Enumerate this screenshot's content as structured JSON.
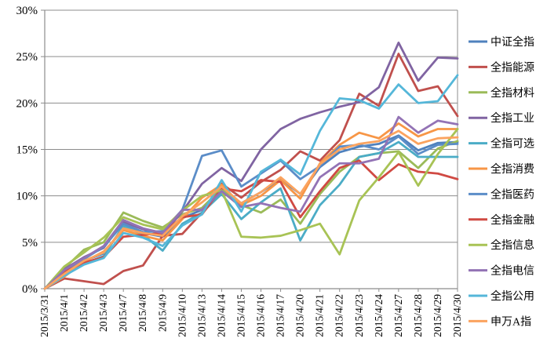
{
  "chart_data": {
    "type": "line",
    "title": "",
    "xlabel": "",
    "ylabel": "",
    "unit": "%",
    "grid": "horizontal",
    "legend_position": "right",
    "x_categories": [
      "2015/3/31",
      "2015/4/1",
      "2015/4/2",
      "2015/4/3",
      "2015/4/7",
      "2015/4/8",
      "2015/4/9",
      "2015/4/10",
      "2015/4/13",
      "2015/4/14",
      "2015/4/15",
      "2015/4/16",
      "2015/4/17",
      "2015/4/20",
      "2015/4/21",
      "2015/4/22",
      "2015/4/23",
      "2015/4/24",
      "2015/4/27",
      "2015/4/28",
      "2015/4/29",
      "2015/4/30"
    ],
    "y_axis": {
      "min": 0,
      "max": 30,
      "step": 5,
      "tick_labels": [
        "0%",
        "5%",
        "10%",
        "15%",
        "20%",
        "25%",
        "30%"
      ]
    },
    "series": [
      {
        "name": "中证全指",
        "color": "#4F81BD",
        "values": [
          0,
          1.8,
          3.0,
          3.8,
          6.6,
          6.0,
          5.6,
          7.6,
          8.5,
          10.6,
          9.2,
          10.4,
          11.8,
          10.2,
          13.1,
          14.7,
          15.3,
          15.6,
          16.5,
          14.9,
          15.7,
          15.8
        ]
      },
      {
        "name": "全指能源",
        "color": "#C0504D",
        "values": [
          0,
          1.1,
          0.8,
          0.5,
          1.9,
          2.5,
          5.7,
          5.9,
          8.2,
          11.3,
          9.8,
          11.5,
          12.8,
          14.8,
          13.8,
          16.0,
          21.0,
          19.7,
          25.3,
          21.3,
          21.8,
          18.6
        ]
      },
      {
        "name": "全指材料",
        "color": "#9BBB59",
        "values": [
          0,
          2.2,
          4.2,
          5.0,
          8.2,
          7.3,
          6.6,
          8.0,
          8.7,
          10.8,
          9.0,
          8.2,
          9.6,
          7.0,
          10.2,
          12.6,
          14.2,
          14.6,
          14.8,
          13.0,
          15.1,
          15.9
        ]
      },
      {
        "name": "全指工业",
        "color": "#8064A2",
        "values": [
          0,
          2.1,
          3.4,
          4.4,
          7.2,
          6.4,
          5.9,
          8.3,
          11.3,
          13.0,
          11.6,
          15.0,
          17.2,
          18.3,
          19.0,
          19.6,
          20.1,
          21.7,
          26.5,
          22.4,
          24.9,
          24.8
        ]
      },
      {
        "name": "全指可选",
        "color": "#4BACC6",
        "values": [
          0,
          1.7,
          2.7,
          3.5,
          6.8,
          5.8,
          4.1,
          7.0,
          8.2,
          10.2,
          7.5,
          9.3,
          10.8,
          5.2,
          9.0,
          11.2,
          14.2,
          14.6,
          15.8,
          14.2,
          14.2,
          14.2
        ]
      },
      {
        "name": "全指消费",
        "color": "#F79646",
        "values": [
          0,
          1.3,
          2.9,
          4.0,
          6.3,
          5.7,
          5.2,
          7.5,
          9.8,
          11.2,
          9.0,
          10.0,
          11.7,
          9.7,
          13.5,
          15.5,
          16.8,
          16.2,
          17.8,
          16.4,
          17.2,
          17.2
        ]
      },
      {
        "name": "全指医药",
        "color": "#5B8DC8",
        "values": [
          0,
          2.0,
          3.2,
          4.5,
          7.0,
          6.1,
          6.2,
          8.5,
          14.3,
          14.9,
          11.0,
          12.4,
          13.8,
          11.8,
          13.2,
          15.3,
          15.5,
          15.0,
          16.4,
          14.5,
          15.5,
          15.6
        ]
      },
      {
        "name": "全指金融",
        "color": "#D04A43",
        "values": [
          0,
          1.8,
          2.8,
          3.4,
          5.6,
          5.8,
          6.0,
          7.7,
          8.0,
          10.8,
          10.5,
          11.7,
          11.5,
          7.7,
          10.5,
          13.0,
          13.8,
          11.7,
          13.4,
          12.6,
          12.4,
          11.8
        ]
      },
      {
        "name": "全指信息",
        "color": "#A8C355",
        "values": [
          0,
          2.4,
          3.9,
          5.5,
          7.7,
          6.9,
          6.4,
          8.4,
          10.0,
          10.6,
          5.6,
          5.5,
          5.7,
          6.3,
          7.0,
          3.7,
          9.5,
          12.0,
          14.7,
          11.1,
          14.5,
          17.2
        ]
      },
      {
        "name": "全指电信",
        "color": "#9373B5",
        "values": [
          0,
          2.0,
          3.3,
          4.6,
          7.4,
          6.5,
          6.0,
          8.5,
          8.5,
          10.5,
          8.8,
          9.2,
          8.7,
          8.3,
          12.0,
          13.5,
          13.5,
          14.0,
          18.5,
          16.8,
          18.1,
          17.7
        ]
      },
      {
        "name": "全指公用",
        "color": "#55B7D9",
        "values": [
          0,
          1.4,
          2.6,
          3.3,
          6.0,
          5.5,
          4.6,
          6.8,
          8.0,
          11.7,
          8.3,
          12.6,
          13.9,
          12.3,
          17.0,
          20.5,
          20.3,
          19.4,
          22.0,
          20.0,
          20.2,
          23.0
        ]
      },
      {
        "name": "申万A指",
        "color": "#FBA35F",
        "values": [
          0,
          1.6,
          3.0,
          3.9,
          6.5,
          6.0,
          5.7,
          7.8,
          9.3,
          11.0,
          9.2,
          10.4,
          12.0,
          10.2,
          13.4,
          15.0,
          15.6,
          15.9,
          17.0,
          15.6,
          16.2,
          16.3
        ]
      }
    ]
  },
  "style": {
    "gridline_color": "#8C8C8C",
    "axis_color": "#8C8C8C",
    "background": "#FFFFFF",
    "text_color": "#000000",
    "line_width": 2.8
  }
}
